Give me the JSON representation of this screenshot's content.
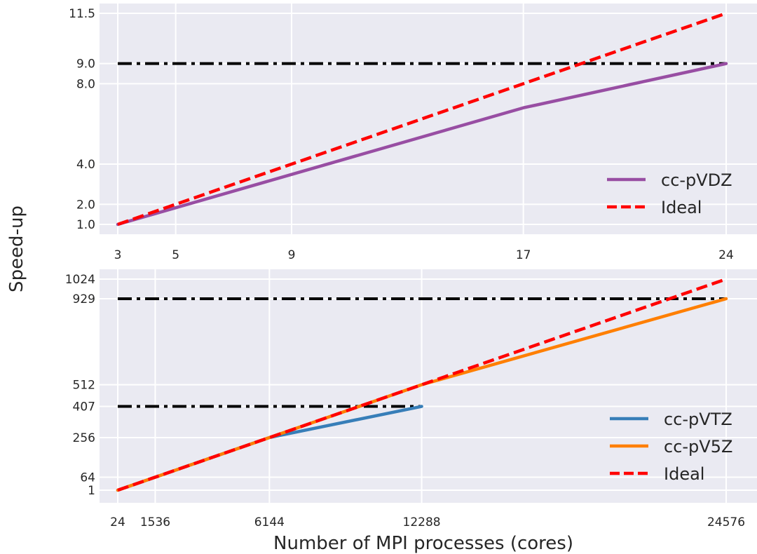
{
  "ylabel": "Speed-up",
  "xlabel": "Number of MPI processes (cores)",
  "chart_data": [
    {
      "type": "line",
      "x_ticks": [
        3,
        5,
        9,
        17,
        24
      ],
      "x_tick_labels": [
        "3",
        "5",
        "9",
        "17",
        "24"
      ],
      "y_ticks": [
        1.0,
        2.0,
        4.0,
        8.0,
        9.0,
        11.5
      ],
      "y_tick_labels": [
        "1.0",
        "2.0",
        "4.0",
        "8.0",
        "9.0",
        "11.5"
      ],
      "xlim": [
        3,
        24
      ],
      "ylim": [
        1.0,
        11.5
      ],
      "grid": true,
      "legend_position": "lower-right",
      "series": [
        {
          "name": "cc-pVDZ",
          "style": "solid",
          "color": "#984ea3",
          "x": [
            3,
            17,
            24
          ],
          "y": [
            1.0,
            6.8,
            9.0
          ]
        },
        {
          "name": "Ideal",
          "style": "dashed",
          "color": "#ff0000",
          "x": [
            3,
            24
          ],
          "y": [
            1.0,
            11.5
          ]
        }
      ],
      "reference_lines": [
        {
          "y": 9.0,
          "x_range": [
            3,
            24
          ],
          "style": "dashdot",
          "color": "#000000"
        }
      ]
    },
    {
      "type": "line",
      "x_ticks": [
        24,
        1536,
        6144,
        12288,
        24576
      ],
      "x_tick_labels": [
        "24",
        "1536",
        "6144",
        "12288",
        "24576"
      ],
      "y_ticks": [
        1,
        64,
        256,
        407,
        512,
        929,
        1024
      ],
      "y_tick_labels": [
        "1",
        "64",
        "256",
        "407",
        "512",
        "929",
        "1024"
      ],
      "xlim": [
        24,
        24576
      ],
      "ylim": [
        1,
        1024
      ],
      "grid": true,
      "legend_position": "lower-right",
      "series": [
        {
          "name": "cc-pVTZ",
          "style": "solid",
          "color": "#377eb8",
          "x": [
            24,
            6144,
            12288
          ],
          "y": [
            1,
            256,
            407
          ]
        },
        {
          "name": "cc-pV5Z",
          "style": "solid",
          "color": "#ff7f00",
          "x": [
            24,
            12288,
            24576
          ],
          "y": [
            1,
            512,
            929
          ]
        },
        {
          "name": "Ideal",
          "style": "dashed",
          "color": "#ff0000",
          "x": [
            24,
            24576
          ],
          "y": [
            1,
            1024
          ]
        }
      ],
      "reference_lines": [
        {
          "y": 929,
          "x_range": [
            24,
            24576
          ],
          "style": "dashdot",
          "color": "#000000"
        },
        {
          "y": 407,
          "x_range": [
            24,
            12288
          ],
          "style": "dashdot",
          "color": "#000000"
        }
      ]
    }
  ]
}
